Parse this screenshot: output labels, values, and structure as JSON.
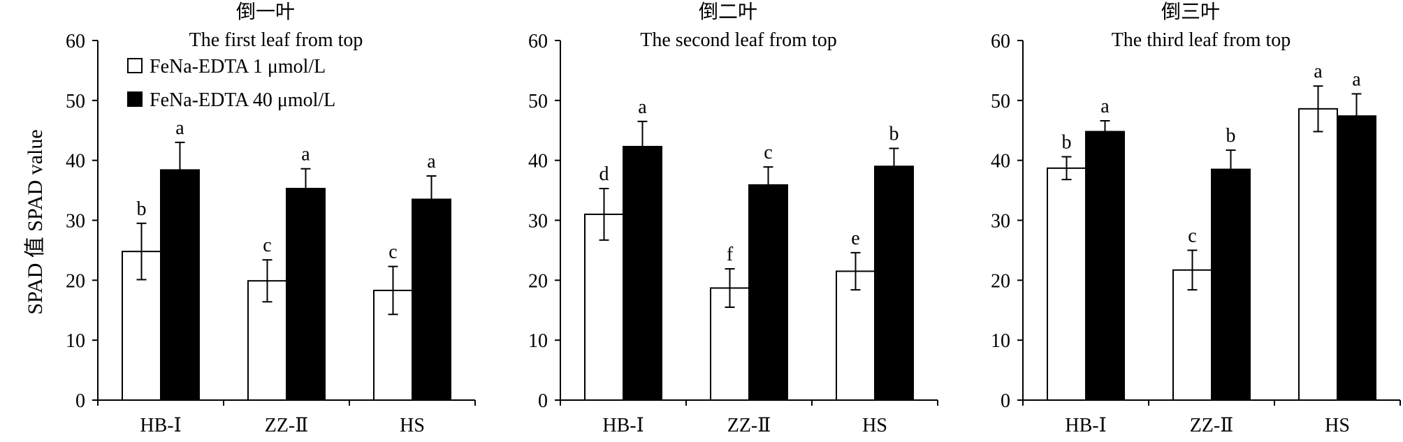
{
  "figure": {
    "ylabel": "SPAD 值 SPAD value",
    "legend": {
      "entries": [
        {
          "label": "FeNa-EDTA 1 μmol/L",
          "fill": "#ffffff"
        },
        {
          "label": "FeNa-EDTA 40 μmol/L",
          "fill": "#000000"
        }
      ]
    }
  },
  "chart_data": [
    {
      "type": "bar",
      "title": "倒一叶",
      "subtitle": "The first leaf from top",
      "categories": [
        "HB-Ⅰ",
        "ZZ-Ⅱ",
        "HS"
      ],
      "ylim": [
        0,
        60
      ],
      "yticks": [
        0,
        10,
        20,
        30,
        40,
        50,
        60
      ],
      "series": [
        {
          "name": "FeNa-EDTA 1 μmol/L",
          "fill": "#ffffff",
          "values": [
            24.8,
            19.9,
            18.3
          ],
          "errors": [
            4.7,
            3.5,
            4.0
          ],
          "letters": [
            "b",
            "c",
            "c"
          ]
        },
        {
          "name": "FeNa-EDTA 40 μmol/L",
          "fill": "#000000",
          "values": [
            38.4,
            35.3,
            33.5
          ],
          "errors": [
            4.6,
            3.3,
            3.9
          ],
          "letters": [
            "a",
            "a",
            "a"
          ]
        }
      ]
    },
    {
      "type": "bar",
      "title": "倒二叶",
      "subtitle": "The second leaf from top",
      "categories": [
        "HB-Ⅰ",
        "ZZ-Ⅱ",
        "HS"
      ],
      "ylim": [
        0,
        60
      ],
      "yticks": [
        0,
        10,
        20,
        30,
        40,
        50,
        60
      ],
      "series": [
        {
          "name": "FeNa-EDTA 1 μmol/L",
          "fill": "#ffffff",
          "values": [
            31.0,
            18.7,
            21.5
          ],
          "errors": [
            4.3,
            3.2,
            3.1
          ],
          "letters": [
            "d",
            "f",
            "e"
          ]
        },
        {
          "name": "FeNa-EDTA 40 μmol/L",
          "fill": "#000000",
          "values": [
            42.3,
            35.9,
            39.0
          ],
          "errors": [
            4.2,
            3.0,
            3.0
          ],
          "letters": [
            "a",
            "c",
            "b"
          ]
        }
      ]
    },
    {
      "type": "bar",
      "title": "倒三叶",
      "subtitle": "The third leaf from top",
      "categories": [
        "HB-Ⅰ",
        "ZZ-Ⅱ",
        "HS"
      ],
      "ylim": [
        0,
        60
      ],
      "yticks": [
        0,
        10,
        20,
        30,
        40,
        50,
        60
      ],
      "series": [
        {
          "name": "FeNa-EDTA 1 μmol/L",
          "fill": "#ffffff",
          "values": [
            38.7,
            21.7,
            48.6
          ],
          "errors": [
            1.9,
            3.3,
            3.8
          ],
          "letters": [
            "b",
            "c",
            "a"
          ]
        },
        {
          "name": "FeNa-EDTA 40 μmol/L",
          "fill": "#000000",
          "values": [
            44.8,
            38.5,
            47.4
          ],
          "errors": [
            1.8,
            3.2,
            3.7
          ],
          "letters": [
            "a",
            "b",
            "a"
          ]
        }
      ]
    }
  ]
}
